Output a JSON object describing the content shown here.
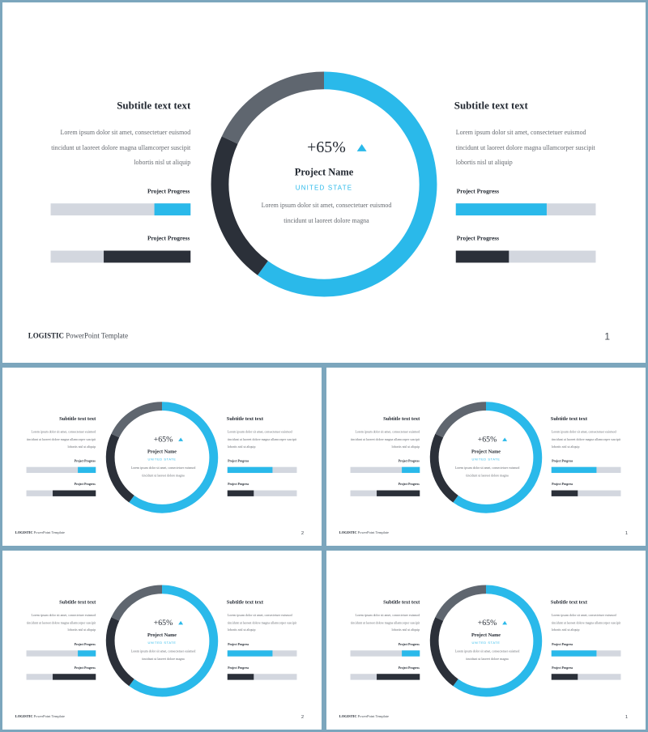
{
  "colors": {
    "accent": "#2ab9ea",
    "dark": "#2b3039",
    "mid_gray": "#5f666f",
    "light_bar": "#d3d7df",
    "frame": "#7ca6bd"
  },
  "slides": [
    {
      "left": {
        "subtitle": "Subtitle text text",
        "body": "Lorem ipsum dolor sit amet, consectetuer euismod tincidunt ut laoreet dolore magna ullamcorper suscipit lobortis nisl ut aliquip",
        "progress": [
          {
            "label": "Project Progress",
            "value": 0.26,
            "color": "#2ab9ea"
          },
          {
            "label": "Project Progress",
            "value": 0.62,
            "color": "#2b3039"
          }
        ]
      },
      "right": {
        "subtitle": "Subtitle text text",
        "body": "Lorem ipsum dolor sit amet, consectetuer euismod tincidunt ut laoreet dolore magna ullamcorper suscipit lobortis nisl ut aliquip",
        "progress": [
          {
            "label": "Project Progress",
            "value": 0.65,
            "color": "#2ab9ea"
          },
          {
            "label": "Project Progress",
            "value": 0.38,
            "color": "#2b3039"
          }
        ]
      },
      "center": {
        "percent": "+65%",
        "trend_icon": "triangle-up-icon",
        "project_name": "Project Name",
        "location": "UNITED STATE",
        "body": "Lorem ipsum dolor sit amet, consectetuer euismod tincidunt ut laoreet dolore magna"
      },
      "ring": {
        "segments": [
          {
            "value": 0.6,
            "color": "#2ab9ea"
          },
          {
            "value": 0.22,
            "color": "#2b3039"
          },
          {
            "value": 0.18,
            "color": "#5f666f"
          }
        ]
      },
      "footer": {
        "brand": "LOGISTIC",
        "text": "PowerPoint Template",
        "page": "1"
      }
    },
    {
      "left": {
        "subtitle": "Subtitle text text",
        "body": "Lorem ipsum dolor sit amet, consectetuer euismod tincidunt ut laoreet dolore magna ullamcorper suscipit lobortis nisl ut aliquip",
        "progress": [
          {
            "label": "Project Progress",
            "value": 0.26,
            "color": "#2ab9ea"
          },
          {
            "label": "Project Progress",
            "value": 0.62,
            "color": "#2b3039"
          }
        ]
      },
      "right": {
        "subtitle": "Subtitle text text",
        "body": "Lorem ipsum dolor sit amet, consectetuer euismod tincidunt ut laoreet dolore magna ullamcorper suscipit lobortis nisl ut aliquip",
        "progress": [
          {
            "label": "Project Progress",
            "value": 0.65,
            "color": "#2ab9ea"
          },
          {
            "label": "Project Progress",
            "value": 0.38,
            "color": "#2b3039"
          }
        ]
      },
      "center": {
        "percent": "+65%",
        "trend_icon": "triangle-up-icon",
        "project_name": "Project Name",
        "location": "UNITED STATE",
        "body": "Lorem ipsum dolor sit amet, consectetuer euismod tincidunt ut laoreet dolore magna"
      },
      "ring": {
        "segments": [
          {
            "value": 0.6,
            "color": "#2ab9ea"
          },
          {
            "value": 0.22,
            "color": "#2b3039"
          },
          {
            "value": 0.18,
            "color": "#5f666f"
          }
        ]
      },
      "footer": {
        "brand": "LOGISTIC",
        "text": "PowerPoint Template",
        "page": "2"
      }
    },
    {
      "left": {
        "subtitle": "Subtitle text text",
        "body": "Lorem ipsum dolor sit amet, consectetuer euismod tincidunt ut laoreet dolore magna ullamcorper suscipit lobortis nisl ut aliquip",
        "progress": [
          {
            "label": "Project Progress",
            "value": 0.26,
            "color": "#2ab9ea"
          },
          {
            "label": "Project Progress",
            "value": 0.62,
            "color": "#2b3039"
          }
        ]
      },
      "right": {
        "subtitle": "Subtitle text text",
        "body": "Lorem ipsum dolor sit amet, consectetuer euismod tincidunt ut laoreet dolore magna ullamcorper suscipit lobortis nisl ut aliquip",
        "progress": [
          {
            "label": "Project Progress",
            "value": 0.65,
            "color": "#2ab9ea"
          },
          {
            "label": "Project Progress",
            "value": 0.38,
            "color": "#2b3039"
          }
        ]
      },
      "center": {
        "percent": "+65%",
        "trend_icon": "triangle-up-icon",
        "project_name": "Project Name",
        "location": "UNITED STATE",
        "body": "Lorem ipsum dolor sit amet, consectetuer euismod tincidunt ut laoreet dolore magna"
      },
      "ring": {
        "segments": [
          {
            "value": 0.6,
            "color": "#2ab9ea"
          },
          {
            "value": 0.22,
            "color": "#2b3039"
          },
          {
            "value": 0.18,
            "color": "#5f666f"
          }
        ]
      },
      "footer": {
        "brand": "LOGISTIC",
        "text": "PowerPoint Template",
        "page": "1"
      }
    },
    {
      "left": {
        "subtitle": "Subtitle text text",
        "body": "Lorem ipsum dolor sit amet, consectetuer euismod tincidunt ut laoreet dolore magna ullamcorper suscipit lobortis nisl ut aliquip",
        "progress": [
          {
            "label": "Project Progress",
            "value": 0.26,
            "color": "#2ab9ea"
          },
          {
            "label": "Project Progress",
            "value": 0.62,
            "color": "#2b3039"
          }
        ]
      },
      "right": {
        "subtitle": "Subtitle text text",
        "body": "Lorem ipsum dolor sit amet, consectetuer euismod tincidunt ut laoreet dolore magna ullamcorper suscipit lobortis nisl ut aliquip",
        "progress": [
          {
            "label": "Project Progress",
            "value": 0.65,
            "color": "#2ab9ea"
          },
          {
            "label": "Project Progress",
            "value": 0.38,
            "color": "#2b3039"
          }
        ]
      },
      "center": {
        "percent": "+65%",
        "trend_icon": "triangle-up-icon",
        "project_name": "Project Name",
        "location": "UNITED STATE",
        "body": "Lorem ipsum dolor sit amet, consectetuer euismod tincidunt ut laoreet dolore magna"
      },
      "ring": {
        "segments": [
          {
            "value": 0.6,
            "color": "#2ab9ea"
          },
          {
            "value": 0.22,
            "color": "#2b3039"
          },
          {
            "value": 0.18,
            "color": "#5f666f"
          }
        ]
      },
      "footer": {
        "brand": "LOGISTIC",
        "text": "PowerPoint Template",
        "page": "2"
      }
    },
    {
      "left": {
        "subtitle": "Subtitle text text",
        "body": "Lorem ipsum dolor sit amet, consectetuer euismod tincidunt ut laoreet dolore magna ullamcorper suscipit lobortis nisl ut aliquip",
        "progress": [
          {
            "label": "Project Progress",
            "value": 0.26,
            "color": "#2ab9ea"
          },
          {
            "label": "Project Progress",
            "value": 0.62,
            "color": "#2b3039"
          }
        ]
      },
      "right": {
        "subtitle": "Subtitle text text",
        "body": "Lorem ipsum dolor sit amet, consectetuer euismod tincidunt ut laoreet dolore magna ullamcorper suscipit lobortis nisl ut aliquip",
        "progress": [
          {
            "label": "Project Progress",
            "value": 0.65,
            "color": "#2ab9ea"
          },
          {
            "label": "Project Progress",
            "value": 0.38,
            "color": "#2b3039"
          }
        ]
      },
      "center": {
        "percent": "+65%",
        "trend_icon": "triangle-up-icon",
        "project_name": "Project Name",
        "location": "UNITED STATE",
        "body": "Lorem ipsum dolor sit amet, consectetuer euismod tincidunt ut laoreet dolore magna"
      },
      "ring": {
        "segments": [
          {
            "value": 0.6,
            "color": "#2ab9ea"
          },
          {
            "value": 0.22,
            "color": "#2b3039"
          },
          {
            "value": 0.18,
            "color": "#5f666f"
          }
        ]
      },
      "footer": {
        "brand": "LOGISTIC",
        "text": "PowerPoint Template",
        "page": "1"
      }
    }
  ]
}
